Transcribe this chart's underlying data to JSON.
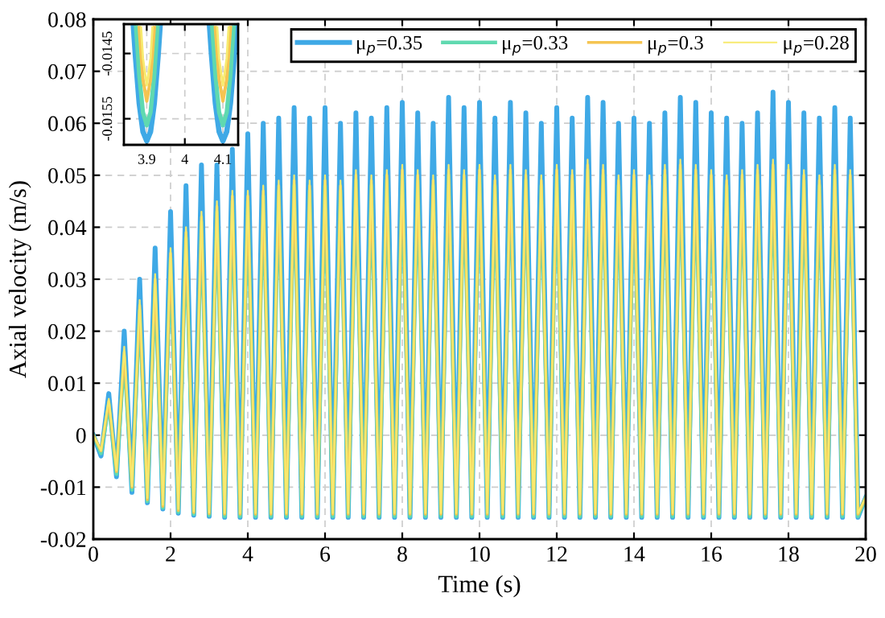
{
  "chart_data": [
    {
      "type": "line",
      "xlabel": "Time (s)",
      "ylabel": "Axial velocity (m/s)",
      "xlim": [
        0,
        20
      ],
      "ylim": [
        -0.02,
        0.08
      ],
      "xticks": [
        0,
        2,
        4,
        6,
        8,
        10,
        12,
        14,
        16,
        18,
        20
      ],
      "yticks": [
        -0.02,
        -0.01,
        0,
        0.01,
        0.02,
        0.03,
        0.04,
        0.05,
        0.06,
        0.07,
        0.08
      ],
      "grid": true,
      "legend": "top right",
      "x": [
        0,
        0.2,
        0.4,
        0.6,
        0.8,
        1.0,
        1.2,
        1.4,
        1.6,
        1.8,
        2.0,
        2.2,
        2.4,
        2.6,
        2.8,
        3.0,
        3.2,
        3.4,
        3.6,
        3.8,
        4.0,
        4.2,
        4.4,
        4.6,
        4.8,
        5.0,
        5.2,
        5.4,
        5.6,
        5.8,
        6.0,
        6.2,
        6.4,
        6.6,
        6.8,
        7.0,
        7.2,
        7.4,
        7.6,
        7.8,
        8.0,
        8.2,
        8.4,
        8.6,
        8.8,
        9.0,
        9.2,
        9.4,
        9.6,
        9.8,
        10.0,
        10.2,
        10.4,
        10.6,
        10.8,
        11.0,
        11.2,
        11.4,
        11.6,
        11.8,
        12.0,
        12.2,
        12.4,
        12.6,
        12.8,
        13.0,
        13.2,
        13.4,
        13.6,
        13.8,
        14.0,
        14.2,
        14.4,
        14.6,
        14.8,
        15.0,
        15.2,
        15.4,
        15.6,
        15.8,
        16.0,
        16.2,
        16.4,
        16.6,
        16.8,
        17.0,
        17.2,
        17.4,
        17.6,
        17.8,
        18.0,
        18.2,
        18.4,
        18.6,
        18.8,
        19.0,
        19.2,
        19.4,
        19.6,
        19.8,
        20
      ],
      "series": [
        {
          "name": "μ$_{p}$=0.35",
          "color": "#3fa9e6",
          "values": [
            0,
            -0.004,
            0.008,
            -0.008,
            0.02,
            -0.011,
            0.03,
            -0.013,
            0.036,
            -0.0142,
            0.043,
            -0.015,
            0.048,
            -0.0154,
            0.052,
            -0.0156,
            0.052,
            -0.0158,
            0.055,
            -0.0158,
            0.058,
            -0.0158,
            0.06,
            -0.0158,
            0.061,
            -0.0158,
            0.063,
            -0.0158,
            0.061,
            -0.0158,
            0.063,
            -0.0158,
            0.06,
            -0.0158,
            0.062,
            -0.0158,
            0.061,
            -0.0158,
            0.063,
            -0.0158,
            0.064,
            -0.0158,
            0.062,
            -0.0158,
            0.06,
            -0.0158,
            0.065,
            -0.0158,
            0.063,
            -0.0158,
            0.064,
            -0.0158,
            0.061,
            -0.0158,
            0.064,
            -0.0158,
            0.062,
            -0.0158,
            0.06,
            -0.0158,
            0.063,
            -0.0158,
            0.061,
            -0.0158,
            0.065,
            -0.0158,
            0.064,
            -0.0158,
            0.06,
            -0.0158,
            0.061,
            -0.0158,
            0.06,
            -0.0158,
            0.062,
            -0.0158,
            0.065,
            -0.0158,
            0.064,
            -0.0158,
            0.062,
            -0.0158,
            0.061,
            -0.0158,
            0.06,
            -0.0158,
            0.062,
            -0.0158,
            0.066,
            -0.0158,
            0.064,
            -0.0158,
            0.062,
            -0.0158,
            0.061,
            -0.0158,
            0.063,
            -0.0158,
            0.061,
            -0.0158,
            -0.012
          ]
        },
        {
          "name": "μ$_{p}$=0.33",
          "color": "#5fd9b0",
          "values": [
            0,
            -0.0035,
            0.006,
            -0.0075,
            0.015,
            -0.0105,
            0.024,
            -0.0127,
            0.029,
            -0.014,
            0.034,
            -0.0148,
            0.038,
            -0.0152,
            0.041,
            -0.0154,
            0.043,
            -0.0156,
            0.045,
            -0.0156,
            0.045,
            -0.0156,
            0.046,
            -0.0156,
            0.047,
            -0.0156,
            0.048,
            -0.0156,
            0.047,
            -0.0156,
            0.048,
            -0.0156,
            0.047,
            -0.0156,
            0.049,
            -0.0156,
            0.048,
            -0.0156,
            0.049,
            -0.0156,
            0.05,
            -0.0156,
            0.049,
            -0.0156,
            0.048,
            -0.0156,
            0.05,
            -0.0156,
            0.049,
            -0.0156,
            0.05,
            -0.0156,
            0.048,
            -0.0156,
            0.05,
            -0.0156,
            0.049,
            -0.0156,
            0.048,
            -0.0156,
            0.05,
            -0.0156,
            0.049,
            -0.0156,
            0.051,
            -0.0156,
            0.05,
            -0.0156,
            0.048,
            -0.0156,
            0.049,
            -0.0156,
            0.048,
            -0.0156,
            0.05,
            -0.0156,
            0.051,
            -0.0156,
            0.05,
            -0.0156,
            0.049,
            -0.0156,
            0.048,
            -0.0156,
            0.049,
            -0.0156,
            0.05,
            -0.0156,
            0.051,
            -0.0156,
            0.05,
            -0.0156,
            0.049,
            -0.0156,
            0.048,
            -0.0156,
            0.05,
            -0.0156,
            0.049,
            -0.0156,
            -0.012
          ]
        },
        {
          "name": "μ$_{p}$=0.3",
          "color": "#f5c451",
          "values": [
            0,
            -0.003,
            0.0065,
            -0.007,
            0.016,
            -0.01,
            0.025,
            -0.0124,
            0.03,
            -0.0137,
            0.035,
            -0.0145,
            0.039,
            -0.0149,
            0.042,
            -0.0151,
            0.044,
            -0.0152,
            0.046,
            -0.0152,
            0.046,
            -0.0152,
            0.047,
            -0.0152,
            0.048,
            -0.0152,
            0.049,
            -0.0152,
            0.048,
            -0.0152,
            0.049,
            -0.0152,
            0.048,
            -0.0152,
            0.05,
            -0.0152,
            0.049,
            -0.0152,
            0.05,
            -0.0152,
            0.051,
            -0.0152,
            0.05,
            -0.0152,
            0.049,
            -0.0152,
            0.051,
            -0.0152,
            0.05,
            -0.0152,
            0.051,
            -0.0152,
            0.049,
            -0.0152,
            0.051,
            -0.0152,
            0.05,
            -0.0152,
            0.049,
            -0.0152,
            0.051,
            -0.0152,
            0.05,
            -0.0152,
            0.052,
            -0.0152,
            0.051,
            -0.0152,
            0.049,
            -0.0152,
            0.05,
            -0.0152,
            0.049,
            -0.0152,
            0.051,
            -0.0152,
            0.052,
            -0.0152,
            0.051,
            -0.0152,
            0.05,
            -0.0152,
            0.049,
            -0.0152,
            0.05,
            -0.0152,
            0.051,
            -0.0152,
            0.052,
            -0.0152,
            0.051,
            -0.0152,
            0.05,
            -0.0152,
            0.049,
            -0.0152,
            0.051,
            -0.0152,
            0.05,
            -0.0152,
            -0.012
          ]
        },
        {
          "name": "μ$_{p}$=0.28",
          "color": "#f7ea6e",
          "values": [
            0,
            -0.003,
            0.007,
            -0.0068,
            0.017,
            -0.0098,
            0.026,
            -0.0121,
            0.031,
            -0.0134,
            0.036,
            -0.0142,
            0.04,
            -0.0147,
            0.043,
            -0.0149,
            0.045,
            -0.015,
            0.047,
            -0.015,
            0.047,
            -0.015,
            0.048,
            -0.015,
            0.049,
            -0.015,
            0.05,
            -0.015,
            0.049,
            -0.015,
            0.05,
            -0.015,
            0.049,
            -0.015,
            0.051,
            -0.015,
            0.05,
            -0.015,
            0.051,
            -0.015,
            0.052,
            -0.015,
            0.051,
            -0.015,
            0.05,
            -0.015,
            0.052,
            -0.015,
            0.051,
            -0.015,
            0.052,
            -0.015,
            0.05,
            -0.015,
            0.052,
            -0.015,
            0.051,
            -0.015,
            0.05,
            -0.015,
            0.052,
            -0.015,
            0.051,
            -0.015,
            0.053,
            -0.015,
            0.052,
            -0.015,
            0.05,
            -0.015,
            0.051,
            -0.015,
            0.05,
            -0.015,
            0.052,
            -0.015,
            0.053,
            -0.015,
            0.052,
            -0.015,
            0.051,
            -0.015,
            0.05,
            -0.015,
            0.051,
            -0.015,
            0.052,
            -0.015,
            0.053,
            -0.015,
            0.052,
            -0.015,
            0.051,
            -0.015,
            0.05,
            -0.015,
            0.052,
            -0.015,
            0.051,
            -0.015,
            -0.012
          ]
        }
      ]
    },
    {
      "type": "line",
      "xlim": [
        3.84,
        4.14
      ],
      "ylim": [
        -0.0159,
        -0.01405
      ],
      "xticks": [
        3.9,
        4,
        4.1
      ],
      "yticks": [
        -0.0145,
        -0.0155
      ],
      "grid": true,
      "series": [
        {
          "color": "#3fa9e6",
          "x": [
            3.865,
            3.87,
            3.88,
            3.89,
            3.9,
            3.91,
            3.92,
            3.93,
            3.935,
            4.0,
            4.065,
            4.07,
            4.08,
            4.09,
            4.1,
            4.11,
            4.12,
            4.13,
            4.135
          ],
          "values": [
            -0.0141,
            -0.01453,
            -0.01526,
            -0.0157,
            -0.01584,
            -0.0157,
            -0.01526,
            -0.01453,
            -0.0141,
            null,
            -0.0141,
            -0.01453,
            -0.01526,
            -0.0157,
            -0.01584,
            -0.0157,
            -0.01526,
            -0.01453,
            -0.0141
          ]
        },
        {
          "color": "#5fd9b0",
          "x": [
            3.872,
            3.88,
            3.89,
            3.9,
            3.91,
            3.92,
            3.928,
            4.0,
            4.072,
            4.08,
            4.09,
            4.1,
            4.11,
            4.12,
            4.128
          ],
          "values": [
            -0.0141,
            -0.01481,
            -0.0154,
            -0.0156,
            -0.0154,
            -0.01481,
            -0.0141,
            null,
            -0.0141,
            -0.01481,
            -0.0154,
            -0.0156,
            -0.0154,
            -0.01481,
            -0.0141
          ]
        },
        {
          "color": "#f5c451",
          "x": [
            3.88,
            3.89,
            3.9,
            3.91,
            3.92,
            4.0,
            4.08,
            4.09,
            4.1,
            4.11,
            4.12
          ],
          "values": [
            -0.0141,
            -0.0149,
            -0.01523,
            -0.0149,
            -0.0141,
            null,
            -0.0141,
            -0.0149,
            -0.01523,
            -0.0149,
            -0.0141
          ]
        },
        {
          "color": "#f7ea6e",
          "x": [
            3.885,
            3.89,
            3.9,
            3.91,
            3.915,
            4.0,
            4.085,
            4.09,
            4.1,
            4.11,
            4.115
          ],
          "values": [
            -0.0141,
            -0.01457,
            -0.01499,
            -0.01457,
            -0.0141,
            null,
            -0.0141,
            -0.01457,
            -0.01499,
            -0.01457,
            -0.0141
          ]
        }
      ]
    }
  ]
}
